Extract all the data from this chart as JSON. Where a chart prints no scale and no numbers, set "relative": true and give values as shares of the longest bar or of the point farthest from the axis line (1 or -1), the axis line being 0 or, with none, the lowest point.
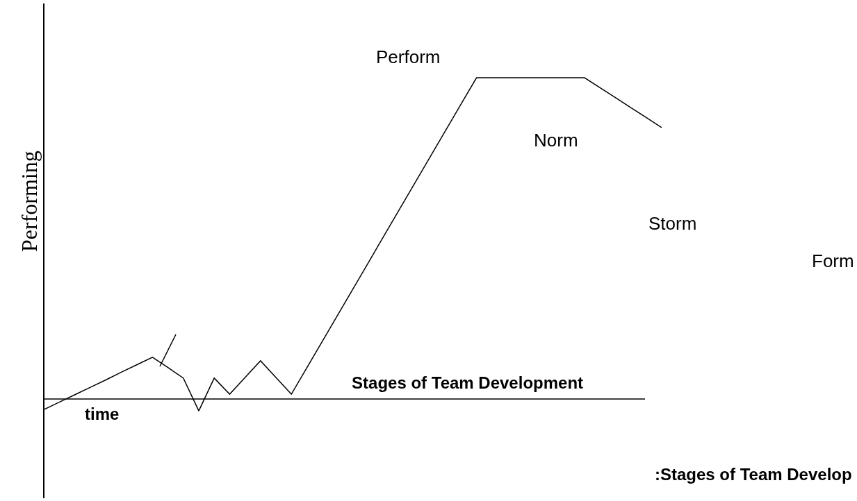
{
  "chart_data": {
    "type": "line",
    "relative": true,
    "title": "Stages of Team Development",
    "xlabel": "time",
    "ylabel": "Performing",
    "categories": [
      null,
      null,
      null,
      null,
      null,
      null,
      null,
      null,
      null,
      null,
      null,
      null,
      null,
      null,
      null,
      null,
      null,
      null,
      null,
      null,
      null,
      null,
      null,
      null,
      null,
      null,
      null,
      null,
      null,
      null,
      null,
      null,
      null,
      null,
      null,
      null,
      null,
      null,
      null,
      null,
      null
    ],
    "series": [
      {
        "color": "#000000",
        "values": [
          -0.032,
          -0.009,
          0.014,
          0.037,
          0.06,
          0.084,
          0.107,
          0.13,
          0.098,
          0.065,
          -0.037,
          0.065,
          0.015,
          0.067,
          0.119,
          0.067,
          0.015,
          0.097,
          0.179,
          0.261,
          0.343,
          0.425,
          0.508,
          0.59,
          0.672,
          0.754,
          0.836,
          0.918,
          1,
          1,
          1,
          1,
          1,
          1,
          1,
          1,
          0.969,
          0.938,
          0.907,
          0.876,
          0.845
        ]
      }
    ],
    "annotations": [
      "Perform",
      "Norm",
      "Storm",
      "Form",
      ":Stages of Team Develop"
    ],
    "grid": false,
    "marker": "none",
    "line_style": "solid"
  }
}
